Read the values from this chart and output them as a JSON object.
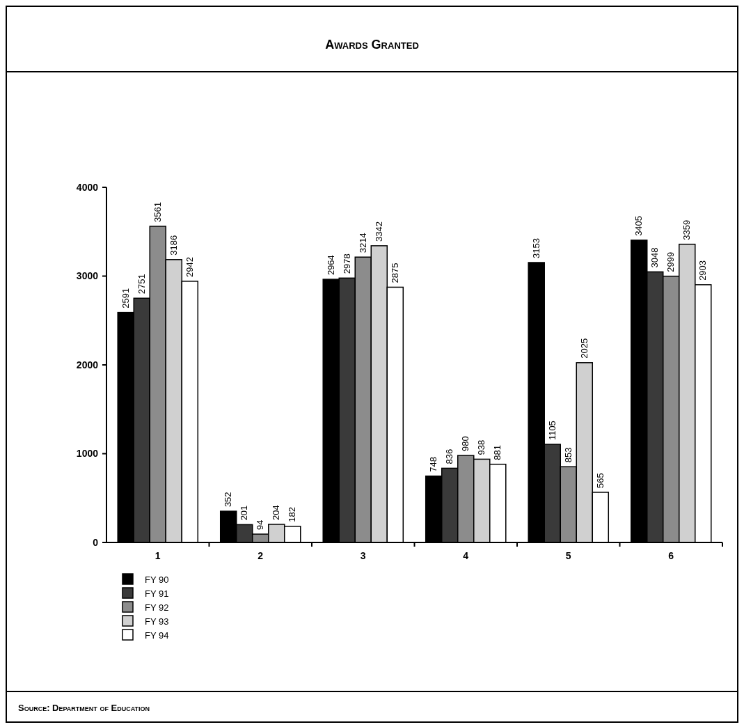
{
  "chart_data": {
    "type": "bar",
    "title": "Awards Granted",
    "annotations": [
      "Source: Department of Education"
    ],
    "categories": [
      "1",
      "2",
      "3",
      "4",
      "5",
      "6"
    ],
    "series": [
      {
        "name": "FY 90",
        "color": "#000000",
        "values": [
          2591,
          352,
          2964,
          748,
          3153,
          3405
        ]
      },
      {
        "name": "FY 91",
        "color": "#3a3a3a",
        "values": [
          2751,
          201,
          2978,
          836,
          1105,
          3048
        ]
      },
      {
        "name": "FY 92",
        "color": "#8c8c8c",
        "values": [
          3561,
          94,
          3214,
          980,
          853,
          2999
        ]
      },
      {
        "name": "FY 93",
        "color": "#d0d0d0",
        "values": [
          3186,
          204,
          3342,
          938,
          2025,
          3359
        ]
      },
      {
        "name": "FY 94",
        "color": "#ffffff",
        "values": [
          2942,
          182,
          2875,
          881,
          565,
          2903
        ]
      }
    ],
    "ylim": [
      0,
      4000
    ],
    "yticks": [
      0,
      1000,
      2000,
      3000,
      4000
    ],
    "data_labels": true,
    "legend": "bottom left",
    "grid": false
  }
}
